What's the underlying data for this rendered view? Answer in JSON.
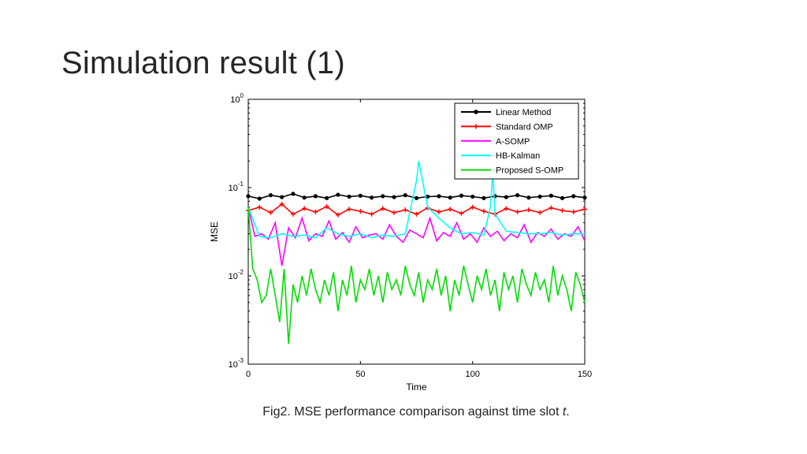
{
  "slide": {
    "title": "Simulation result (1)",
    "caption_text": "Fig2. MSE performance comparison against time slot ",
    "caption_var": "t",
    "caption_end": "."
  },
  "chart_data": {
    "type": "line",
    "xlabel": "Time",
    "ylabel": "MSE",
    "yscale": "log",
    "xlim": [
      0,
      150
    ],
    "ylim": [
      0.001,
      1
    ],
    "xticks": [
      0,
      50,
      100,
      150
    ],
    "xtick_labels": [
      "0",
      "50",
      "100",
      "150"
    ],
    "yticks": [
      0.001,
      0.01,
      0.1,
      1
    ],
    "ytick_labels": [
      {
        "base": "10",
        "exp": "-3"
      },
      {
        "base": "10",
        "exp": "-2"
      },
      {
        "base": "10",
        "exp": "-1"
      },
      {
        "base": "10",
        "exp": "0"
      }
    ],
    "grid": false,
    "legend_position": "top-right",
    "series": [
      {
        "name": "Linear Method",
        "color": "#000000",
        "marker": "dot",
        "x": [
          0,
          5,
          10,
          15,
          20,
          25,
          30,
          35,
          40,
          45,
          50,
          55,
          60,
          65,
          70,
          75,
          80,
          85,
          90,
          95,
          100,
          105,
          110,
          115,
          120,
          125,
          130,
          135,
          140,
          145,
          150
        ],
        "y": [
          0.08,
          0.075,
          0.082,
          0.078,
          0.085,
          0.077,
          0.08,
          0.076,
          0.083,
          0.079,
          0.081,
          0.077,
          0.08,
          0.078,
          0.082,
          0.076,
          0.079,
          0.08,
          0.077,
          0.081,
          0.079,
          0.076,
          0.08,
          0.078,
          0.082,
          0.077,
          0.079,
          0.081,
          0.076,
          0.08,
          0.077
        ]
      },
      {
        "name": "Standard OMP",
        "color": "#ff0000",
        "marker": "plus",
        "x": [
          0,
          5,
          10,
          15,
          20,
          25,
          30,
          35,
          40,
          45,
          50,
          55,
          60,
          65,
          70,
          75,
          80,
          85,
          90,
          95,
          100,
          105,
          110,
          115,
          120,
          125,
          130,
          135,
          140,
          145,
          150
        ],
        "y": [
          0.055,
          0.06,
          0.052,
          0.065,
          0.05,
          0.058,
          0.053,
          0.061,
          0.049,
          0.057,
          0.054,
          0.05,
          0.058,
          0.052,
          0.056,
          0.05,
          0.059,
          0.053,
          0.057,
          0.051,
          0.06,
          0.054,
          0.05,
          0.058,
          0.053,
          0.056,
          0.052,
          0.059,
          0.055,
          0.053,
          0.057
        ]
      },
      {
        "name": "A-SOMP",
        "color": "#ff00ff",
        "marker": "none",
        "x": [
          0,
          3,
          6,
          9,
          12,
          15,
          18,
          21,
          24,
          27,
          30,
          33,
          36,
          39,
          42,
          45,
          48,
          51,
          54,
          57,
          60,
          63,
          66,
          69,
          72,
          75,
          78,
          81,
          84,
          87,
          90,
          93,
          96,
          99,
          102,
          105,
          108,
          111,
          114,
          117,
          120,
          123,
          126,
          129,
          132,
          135,
          138,
          141,
          144,
          147,
          150
        ],
        "y": [
          0.06,
          0.028,
          0.03,
          0.026,
          0.04,
          0.013,
          0.035,
          0.027,
          0.045,
          0.025,
          0.03,
          0.028,
          0.042,
          0.026,
          0.031,
          0.024,
          0.036,
          0.027,
          0.029,
          0.03,
          0.026,
          0.038,
          0.028,
          0.024,
          0.033,
          0.03,
          0.027,
          0.045,
          0.025,
          0.031,
          0.028,
          0.04,
          0.026,
          0.03,
          0.024,
          0.035,
          0.028,
          0.032,
          0.025,
          0.03,
          0.027,
          0.038,
          0.024,
          0.031,
          0.028,
          0.034,
          0.026,
          0.03,
          0.028,
          0.036,
          0.025
        ]
      },
      {
        "name": "HB-Kalman",
        "color": "#00ffff",
        "marker": "none",
        "x": [
          0,
          5,
          10,
          15,
          20,
          25,
          30,
          35,
          40,
          45,
          50,
          55,
          60,
          65,
          70,
          75,
          76,
          80,
          85,
          90,
          95,
          100,
          105,
          108,
          109,
          110,
          115,
          120,
          125,
          130,
          135,
          140,
          145,
          150
        ],
        "y": [
          0.06,
          0.028,
          0.027,
          0.03,
          0.028,
          0.029,
          0.027,
          0.035,
          0.03,
          0.028,
          0.03,
          0.027,
          0.029,
          0.028,
          0.03,
          0.12,
          0.2,
          0.06,
          0.045,
          0.035,
          0.03,
          0.031,
          0.029,
          0.06,
          0.15,
          0.05,
          0.032,
          0.031,
          0.03,
          0.03,
          0.031,
          0.029,
          0.03,
          0.03
        ]
      },
      {
        "name": "Proposed S-OMP",
        "color": "#00dd00",
        "marker": "none",
        "x": [
          0,
          2,
          4,
          6,
          8,
          10,
          12,
          14,
          16,
          18,
          20,
          22,
          24,
          26,
          28,
          30,
          32,
          34,
          36,
          38,
          40,
          42,
          44,
          46,
          48,
          50,
          52,
          54,
          56,
          58,
          60,
          62,
          64,
          66,
          68,
          70,
          72,
          74,
          76,
          78,
          80,
          82,
          84,
          86,
          88,
          90,
          92,
          94,
          96,
          98,
          100,
          102,
          104,
          106,
          108,
          110,
          112,
          114,
          116,
          118,
          120,
          122,
          124,
          126,
          128,
          130,
          132,
          134,
          136,
          138,
          140,
          142,
          144,
          146,
          148,
          150
        ],
        "y": [
          0.06,
          0.012,
          0.009,
          0.005,
          0.006,
          0.012,
          0.006,
          0.003,
          0.012,
          0.0017,
          0.008,
          0.005,
          0.01,
          0.006,
          0.012,
          0.007,
          0.005,
          0.009,
          0.006,
          0.011,
          0.004,
          0.009,
          0.006,
          0.013,
          0.005,
          0.009,
          0.007,
          0.012,
          0.006,
          0.01,
          0.005,
          0.011,
          0.007,
          0.009,
          0.006,
          0.013,
          0.008,
          0.006,
          0.011,
          0.005,
          0.009,
          0.007,
          0.012,
          0.006,
          0.01,
          0.004,
          0.009,
          0.006,
          0.013,
          0.008,
          0.005,
          0.01,
          0.007,
          0.012,
          0.006,
          0.009,
          0.004,
          0.011,
          0.007,
          0.01,
          0.005,
          0.012,
          0.008,
          0.006,
          0.011,
          0.007,
          0.009,
          0.005,
          0.013,
          0.006,
          0.01,
          0.007,
          0.004,
          0.011,
          0.008,
          0.005
        ]
      }
    ]
  }
}
